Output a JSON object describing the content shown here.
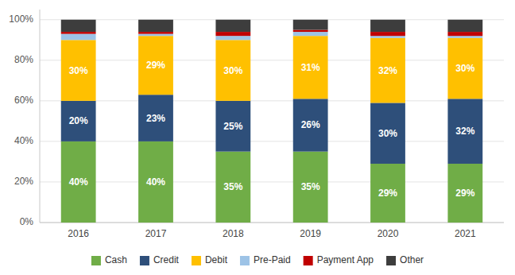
{
  "chart_data": {
    "type": "bar",
    "stacked": true,
    "grid": true,
    "legend": "bottom",
    "categories": [
      "2016",
      "2017",
      "2018",
      "2019",
      "2020",
      "2021"
    ],
    "ylim": [
      0,
      105
    ],
    "yticks": [
      {
        "value": 0,
        "label": "0%"
      },
      {
        "value": 20,
        "label": "20%"
      },
      {
        "value": 40,
        "label": "40%"
      },
      {
        "value": 60,
        "label": "60%"
      },
      {
        "value": 80,
        "label": "80%"
      },
      {
        "value": 100,
        "label": "100%"
      }
    ],
    "series": [
      {
        "name": "Cash",
        "color": "#70ad47",
        "values": [
          40,
          40,
          35,
          35,
          29,
          29
        ],
        "data_labels": true,
        "value_labels": [
          "40%",
          "40%",
          "35%",
          "35%",
          "29%",
          "29%"
        ]
      },
      {
        "name": "Credit",
        "color": "#2e4f7a",
        "values": [
          20,
          23,
          25,
          26,
          30,
          32
        ],
        "data_labels": true,
        "value_labels": [
          "20%",
          "23%",
          "25%",
          "26%",
          "30%",
          "32%"
        ]
      },
      {
        "name": "Debit",
        "color": "#ffc000",
        "values": [
          30,
          29,
          30,
          31,
          32,
          30
        ],
        "data_labels": true,
        "value_labels": [
          "30%",
          "29%",
          "30%",
          "31%",
          "32%",
          "30%"
        ]
      },
      {
        "name": "Pre-Paid",
        "color": "#9dc3e6",
        "values": [
          3,
          1,
          2,
          2,
          1,
          1
        ]
      },
      {
        "name": "Payment App",
        "color": "#c00000",
        "values": [
          1,
          1,
          2,
          1,
          2,
          2
        ]
      },
      {
        "name": "Other",
        "color": "#3d3d3d",
        "values": [
          6,
          6,
          6,
          5,
          6,
          6
        ]
      }
    ]
  }
}
